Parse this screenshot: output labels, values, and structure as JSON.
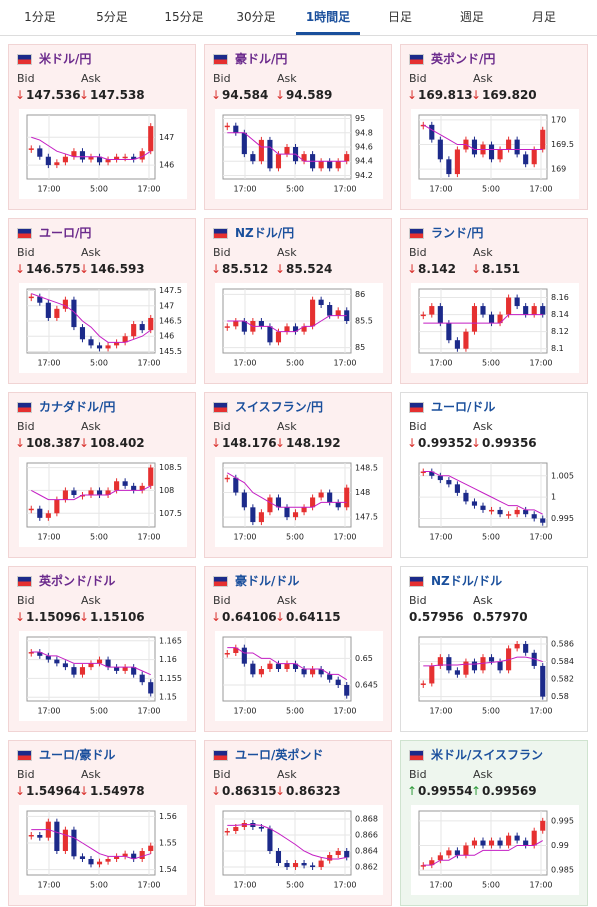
{
  "tabs": {
    "items": [
      "1分足",
      "5分足",
      "15分足",
      "30分足",
      "1時間足",
      "日足",
      "週足",
      "月足"
    ],
    "active": 4
  },
  "labels": {
    "bid": "Bid",
    "ask": "Ask"
  },
  "candle_colors": {
    "up": "#e53030",
    "down": "#1c2a8a",
    "ma": "#c41fc4"
  },
  "tiles": [
    {
      "name": "米ドル/円",
      "name_color": "#6b2a8c",
      "background": "#fdf0f0",
      "border": "#f1d4d4",
      "arrow": "↓",
      "arrow_color": "#d9302c",
      "bid": "147.536",
      "ask": "147.538",
      "chart": {
        "type": "candlestick",
        "values": [
          146.6,
          146.3,
          146.0,
          146.1,
          146.3,
          146.5,
          146.2,
          146.3,
          146.1,
          146.2,
          146.3,
          146.3,
          146.2,
          146.5,
          147.4
        ],
        "ma": [
          147.0,
          146.9,
          146.7,
          146.5,
          146.4,
          146.3,
          146.3,
          146.3,
          146.3,
          146.2,
          146.2,
          146.2,
          146.2,
          146.3,
          146.5
        ],
        "ylim": [
          145.5,
          147.8
        ],
        "yticks": [
          146,
          147
        ],
        "xlabels": [
          "17:00",
          "5:00",
          "17:00"
        ]
      }
    },
    {
      "name": "豪ドル/円",
      "name_color": "#6b2a8c",
      "background": "#fdf0f0",
      "border": "#f1d4d4",
      "arrow": "↓",
      "arrow_color": "#d9302c",
      "bid": "94.584",
      "ask": "94.589",
      "chart": {
        "type": "candlestick",
        "values": [
          94.9,
          94.8,
          94.5,
          94.4,
          94.7,
          94.3,
          94.5,
          94.6,
          94.4,
          94.5,
          94.3,
          94.4,
          94.3,
          94.4,
          94.5
        ],
        "ma": [
          94.8,
          94.8,
          94.8,
          94.7,
          94.6,
          94.6,
          94.5,
          94.5,
          94.5,
          94.4,
          94.4,
          94.4,
          94.4,
          94.4,
          94.4
        ],
        "ylim": [
          94.15,
          95.05
        ],
        "yticks": [
          94.2,
          94.4,
          94.6,
          94.8,
          95
        ],
        "xlabels": [
          "17:00",
          "5:00",
          "17:00"
        ]
      }
    },
    {
      "name": "英ポンド/円",
      "name_color": "#6b2a8c",
      "background": "#fdf0f0",
      "border": "#f1d4d4",
      "arrow": "↓",
      "arrow_color": "#d9302c",
      "bid": "169.813",
      "ask": "169.820",
      "chart": {
        "type": "candlestick",
        "values": [
          169.9,
          169.6,
          169.2,
          168.9,
          169.4,
          169.6,
          169.3,
          169.5,
          169.2,
          169.4,
          169.6,
          169.3,
          169.1,
          169.4,
          169.8
        ],
        "ma": [
          169.9,
          169.8,
          169.7,
          169.6,
          169.5,
          169.5,
          169.4,
          169.4,
          169.4,
          169.4,
          169.4,
          169.4,
          169.4,
          169.4,
          169.4
        ],
        "ylim": [
          168.8,
          170.1
        ],
        "yticks": [
          169,
          169.5,
          170
        ],
        "xlabels": [
          "17:00",
          "5:00",
          "17:00"
        ]
      }
    },
    {
      "name": "ユーロ/円",
      "name_color": "#6b2a8c",
      "background": "#fdf0f0",
      "border": "#f1d4d4",
      "arrow": "↓",
      "arrow_color": "#d9302c",
      "bid": "146.575",
      "ask": "146.593",
      "chart": {
        "type": "candlestick",
        "values": [
          147.3,
          147.1,
          146.6,
          146.9,
          147.2,
          146.3,
          145.9,
          145.7,
          145.6,
          145.7,
          145.8,
          146.0,
          146.4,
          146.2,
          146.6
        ],
        "ma": [
          147.4,
          147.3,
          147.2,
          147.1,
          147.0,
          146.8,
          146.5,
          146.3,
          146.0,
          145.8,
          145.8,
          145.8,
          145.9,
          146.0,
          146.2
        ],
        "ylim": [
          145.45,
          147.55
        ],
        "yticks": [
          145.5,
          146,
          146.5,
          147,
          147.5
        ],
        "xlabels": [
          "17:00",
          "5:00",
          "17:00"
        ]
      }
    },
    {
      "name": "NZドル/円",
      "name_color": "#1a4f9c",
      "background": "#fdf0f0",
      "border": "#f1d4d4",
      "arrow": "↓",
      "arrow_color": "#d9302c",
      "bid": "85.512",
      "ask": "85.524",
      "chart": {
        "type": "candlestick",
        "values": [
          85.4,
          85.5,
          85.3,
          85.5,
          85.4,
          85.1,
          85.3,
          85.4,
          85.3,
          85.4,
          85.9,
          85.8,
          85.6,
          85.7,
          85.5
        ],
        "ma": [
          85.5,
          85.5,
          85.5,
          85.4,
          85.4,
          85.4,
          85.3,
          85.3,
          85.3,
          85.4,
          85.4,
          85.5,
          85.6,
          85.6,
          85.6
        ],
        "ylim": [
          84.9,
          86.1
        ],
        "yticks": [
          85,
          85.5,
          86
        ],
        "xlabels": [
          "17:00",
          "5:00",
          "17:00"
        ]
      }
    },
    {
      "name": "ランド/円",
      "name_color": "#1a4f9c",
      "background": "#fdf0f0",
      "border": "#f1d4d4",
      "arrow": "↓",
      "arrow_color": "#d9302c",
      "bid": "8.142",
      "ask": "8.151",
      "chart": {
        "type": "candlestick",
        "values": [
          8.14,
          8.15,
          8.13,
          8.11,
          8.1,
          8.12,
          8.15,
          8.14,
          8.13,
          8.14,
          8.16,
          8.15,
          8.14,
          8.15,
          8.14
        ],
        "ma": [
          8.13,
          8.13,
          8.13,
          8.13,
          8.13,
          8.13,
          8.13,
          8.13,
          8.13,
          8.13,
          8.14,
          8.14,
          8.14,
          8.14,
          8.14
        ],
        "ylim": [
          8.095,
          8.17
        ],
        "yticks": [
          8.1,
          8.12,
          8.14,
          8.16
        ],
        "xlabels": [
          "17:00",
          "5:00",
          "17:00"
        ]
      }
    },
    {
      "name": "カナダドル/円",
      "name_color": "#1a4f9c",
      "background": "#fdf0f0",
      "border": "#f1d4d4",
      "arrow": "↓",
      "arrow_color": "#d9302c",
      "bid": "108.387",
      "ask": "108.402",
      "chart": {
        "type": "candlestick",
        "values": [
          107.6,
          107.4,
          107.5,
          107.8,
          108.0,
          107.9,
          107.9,
          108.0,
          107.9,
          108.0,
          108.2,
          108.1,
          108.0,
          108.1,
          108.5
        ],
        "ma": [
          108.0,
          107.9,
          107.8,
          107.8,
          107.8,
          107.8,
          107.9,
          107.9,
          107.9,
          107.9,
          108.0,
          108.0,
          108.0,
          108.0,
          108.1
        ],
        "ylim": [
          107.2,
          108.6
        ],
        "yticks": [
          107.5,
          108,
          108.5
        ],
        "xlabels": [
          "17:00",
          "5:00",
          "17:00"
        ]
      }
    },
    {
      "name": "スイスフラン/円",
      "name_color": "#1a4f9c",
      "background": "#fdf0f0",
      "border": "#f1d4d4",
      "arrow": "↓",
      "arrow_color": "#d9302c",
      "bid": "148.176",
      "ask": "148.192",
      "chart": {
        "type": "candlestick",
        "values": [
          148.3,
          148.0,
          147.7,
          147.4,
          147.6,
          147.9,
          147.7,
          147.5,
          147.6,
          147.7,
          147.9,
          148.0,
          147.8,
          147.7,
          148.1
        ],
        "ma": [
          148.4,
          148.3,
          148.2,
          148.0,
          147.9,
          147.8,
          147.7,
          147.7,
          147.7,
          147.7,
          147.7,
          147.8,
          147.8,
          147.8,
          147.8
        ],
        "ylim": [
          147.3,
          148.6
        ],
        "yticks": [
          147.5,
          148,
          148.5
        ],
        "xlabels": [
          "17:00",
          "5:00",
          "17:00"
        ]
      }
    },
    {
      "name": "ユーロ/ドル",
      "name_color": "#1a4f9c",
      "background": "#ffffff",
      "border": "#dddddd",
      "arrow": "↓",
      "arrow_color": "#d9302c",
      "bid": "0.99352",
      "ask": "0.99356",
      "chart": {
        "type": "candlestick",
        "values": [
          1.006,
          1.005,
          1.004,
          1.003,
          1.001,
          0.999,
          0.998,
          0.997,
          0.997,
          0.996,
          0.996,
          0.997,
          0.996,
          0.995,
          0.994
        ],
        "ma": [
          1.006,
          1.006,
          1.005,
          1.005,
          1.004,
          1.003,
          1.002,
          1.001,
          1.0,
          0.999,
          0.998,
          0.998,
          0.997,
          0.997,
          0.996
        ],
        "ylim": [
          0.993,
          1.008
        ],
        "yticks": [
          0.995,
          1,
          1.005
        ],
        "xlabels": [
          "17:00",
          "5:00",
          "17:00"
        ]
      }
    },
    {
      "name": "英ポンド/ドル",
      "name_color": "#6b2a8c",
      "background": "#fdf0f0",
      "border": "#f1d4d4",
      "arrow": "↓",
      "arrow_color": "#d9302c",
      "bid": "1.15096",
      "ask": "1.15106",
      "chart": {
        "type": "candlestick",
        "values": [
          1.162,
          1.161,
          1.16,
          1.159,
          1.158,
          1.156,
          1.158,
          1.159,
          1.16,
          1.158,
          1.157,
          1.158,
          1.156,
          1.154,
          1.151
        ],
        "ma": [
          1.162,
          1.162,
          1.161,
          1.161,
          1.16,
          1.159,
          1.159,
          1.159,
          1.159,
          1.158,
          1.158,
          1.158,
          1.158,
          1.157,
          1.156
        ],
        "ylim": [
          1.149,
          1.166
        ],
        "yticks": [
          1.15,
          1.155,
          1.16,
          1.165
        ],
        "xlabels": [
          "17:00",
          "5:00",
          "17:00"
        ]
      }
    },
    {
      "name": "豪ドル/ドル",
      "name_color": "#1a4f9c",
      "background": "#fdf0f0",
      "border": "#f1d4d4",
      "arrow": "↓",
      "arrow_color": "#d9302c",
      "bid": "0.64106",
      "ask": "0.64115",
      "chart": {
        "type": "candlestick",
        "values": [
          0.651,
          0.652,
          0.649,
          0.647,
          0.648,
          0.649,
          0.648,
          0.649,
          0.648,
          0.647,
          0.648,
          0.647,
          0.646,
          0.645,
          0.643
        ],
        "ma": [
          0.652,
          0.652,
          0.651,
          0.651,
          0.65,
          0.65,
          0.649,
          0.649,
          0.649,
          0.648,
          0.648,
          0.648,
          0.647,
          0.647,
          0.646
        ],
        "ylim": [
          0.642,
          0.654
        ],
        "yticks": [
          0.645,
          0.65
        ],
        "xlabels": [
          "17:00",
          "5:00",
          "17:00"
        ]
      }
    },
    {
      "name": "NZドル/ドル",
      "name_color": "#1a4f9c",
      "background": "#ffffff",
      "border": "#dddddd",
      "bid": "0.57956",
      "ask": "0.57970",
      "chart": {
        "type": "candlestick",
        "values": [
          0.5815,
          0.5835,
          0.5845,
          0.583,
          0.5825,
          0.584,
          0.583,
          0.5845,
          0.584,
          0.583,
          0.5855,
          0.586,
          0.585,
          0.5835,
          0.58
        ],
        "ma": [
          0.5835,
          0.5835,
          0.5836,
          0.5836,
          0.5836,
          0.5837,
          0.5837,
          0.5838,
          0.5839,
          0.584,
          0.5842,
          0.5845,
          0.5845,
          0.5843,
          0.584
        ],
        "ylim": [
          0.5795,
          0.5868
        ],
        "yticks": [
          0.58,
          0.582,
          0.584,
          0.586
        ],
        "xlabels": [
          "17:00",
          "5:00",
          "17:00"
        ]
      }
    },
    {
      "name": "ユーロ/豪ドル",
      "name_color": "#1a4f9c",
      "background": "#fdf0f0",
      "border": "#f1d4d4",
      "arrow": "↓",
      "arrow_color": "#d9302c",
      "bid": "1.54964",
      "ask": "1.54978",
      "chart": {
        "type": "candlestick",
        "values": [
          1.553,
          1.552,
          1.558,
          1.547,
          1.555,
          1.545,
          1.544,
          1.542,
          1.543,
          1.544,
          1.545,
          1.546,
          1.544,
          1.547,
          1.549
        ],
        "ma": [
          1.555,
          1.555,
          1.555,
          1.554,
          1.553,
          1.552,
          1.55,
          1.548,
          1.546,
          1.545,
          1.545,
          1.545,
          1.544,
          1.545,
          1.546
        ],
        "ylim": [
          1.538,
          1.562
        ],
        "yticks": [
          1.54,
          1.55,
          1.56
        ],
        "xlabels": [
          "17:00",
          "5:00",
          "17:00"
        ]
      }
    },
    {
      "name": "ユーロ/英ポンド",
      "name_color": "#1a4f9c",
      "background": "#fdf0f0",
      "border": "#f1d4d4",
      "arrow": "↓",
      "arrow_color": "#d9302c",
      "bid": "0.86315",
      "ask": "0.86323",
      "chart": {
        "type": "candlestick",
        "values": [
          0.8665,
          0.867,
          0.8675,
          0.867,
          0.8668,
          0.864,
          0.8625,
          0.862,
          0.8625,
          0.8622,
          0.862,
          0.8628,
          0.8635,
          0.864,
          0.8632
        ],
        "ma": [
          0.8672,
          0.8672,
          0.8673,
          0.8673,
          0.8672,
          0.8668,
          0.8662,
          0.8655,
          0.8648,
          0.864,
          0.8635,
          0.8632,
          0.863,
          0.863,
          0.8632
        ],
        "ylim": [
          0.861,
          0.869
        ],
        "yticks": [
          0.862,
          0.864,
          0.866,
          0.868
        ],
        "xlabels": [
          "17:00",
          "5:00",
          "17:00"
        ]
      }
    },
    {
      "name": "米ドル/スイスフラン",
      "name_color": "#1a4f9c",
      "background": "#eef6ee",
      "border": "#cfe3cf",
      "arrow": "↑",
      "arrow_color": "#2e9a3a",
      "bid": "0.99554",
      "ask": "0.99569",
      "chart": {
        "type": "candlestick",
        "values": [
          0.986,
          0.987,
          0.988,
          0.989,
          0.988,
          0.99,
          0.991,
          0.99,
          0.991,
          0.99,
          0.992,
          0.991,
          0.99,
          0.993,
          0.995
        ],
        "ma": [
          0.986,
          0.986,
          0.987,
          0.987,
          0.988,
          0.988,
          0.988,
          0.989,
          0.989,
          0.989,
          0.989,
          0.99,
          0.99,
          0.99,
          0.991
        ],
        "ylim": [
          0.984,
          0.997
        ],
        "yticks": [
          0.985,
          0.99,
          0.995
        ],
        "xlabels": [
          "17:00",
          "5:00",
          "17:00"
        ]
      }
    }
  ]
}
